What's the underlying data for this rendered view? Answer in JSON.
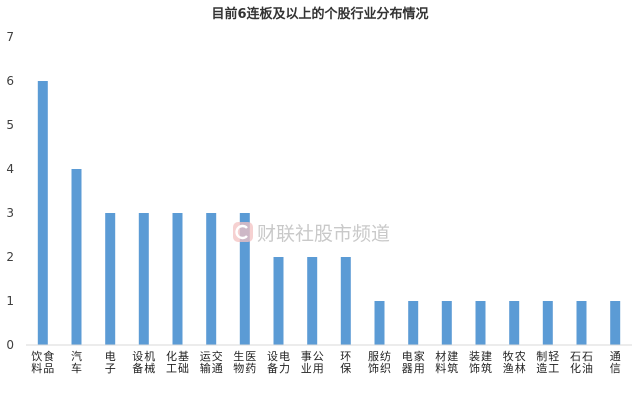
{
  "chart_data": {
    "type": "bar",
    "title": "目前6连板及以上的个股行业分布情况",
    "xlabel": "",
    "ylabel": "",
    "categories": [
      "食品饮料",
      "汽车",
      "电子",
      "机械设备",
      "基础化工",
      "交通运输",
      "医药生物",
      "电力设备",
      "公用事业",
      "环保",
      "纺织服饰",
      "家用电器",
      "建筑材料",
      "建筑装饰",
      "农林牧渔",
      "轻工制造",
      "石油石化",
      "通信"
    ],
    "values": [
      6,
      4,
      3,
      3,
      3,
      3,
      3,
      2,
      2,
      2,
      1,
      1,
      1,
      1,
      1,
      1,
      1,
      1
    ],
    "ylim": [
      0,
      7
    ],
    "yticks": [
      "0",
      "1",
      "2",
      "3",
      "4",
      "5",
      "6",
      "7"
    ],
    "grid": false,
    "legend": "none",
    "colors": {
      "bar": "#5b9bd5",
      "axis": "#d9d9d9",
      "watermark": "#e5e5e5",
      "watermark_accent": "#f0a1a1"
    }
  },
  "watermark": {
    "text": "财联社股市频道",
    "icon": "cls-logo-icon"
  }
}
